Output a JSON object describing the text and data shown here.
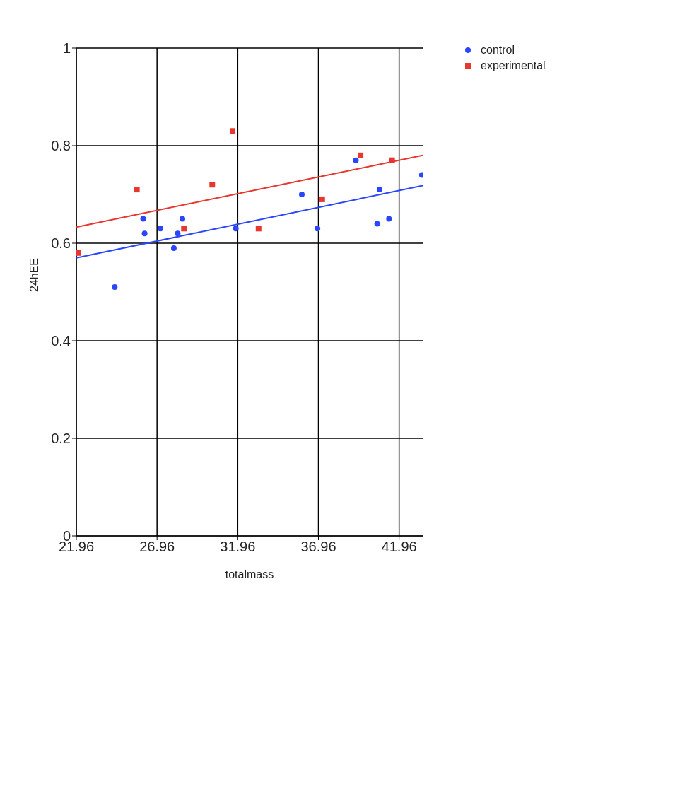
{
  "chart_data": {
    "type": "scatter",
    "xlabel": "totalmass",
    "ylabel": "24hEE",
    "xlim": [
      21.96,
      43.42
    ],
    "xticks": [
      21.96,
      26.96,
      31.96,
      36.96,
      41.96
    ],
    "ylim": [
      0,
      1
    ],
    "yticks": [
      0,
      0.2,
      0.4,
      0.6,
      0.8,
      1
    ],
    "grid": true,
    "legend": "top right",
    "series": [
      {
        "name": "control",
        "color": "#2b45ff",
        "marker": "circle",
        "x": [
          24.34,
          26.1,
          26.19,
          27.17,
          28.0,
          28.24,
          28.53,
          31.84,
          35.93,
          36.9,
          39.28,
          40.74,
          40.6,
          41.33,
          43.37
        ],
        "values": [
          0.51,
          0.65,
          0.62,
          0.63,
          0.59,
          0.62,
          0.65,
          0.63,
          0.7,
          0.63,
          0.77,
          0.71,
          0.64,
          0.65,
          0.74
        ]
      },
      {
        "name": "experimental",
        "color": "#e8372f",
        "marker": "square",
        "x": [
          22.06,
          25.71,
          28.63,
          30.38,
          31.64,
          33.25,
          37.19,
          39.57,
          41.52
        ],
        "values": [
          0.58,
          0.71,
          0.63,
          0.72,
          0.83,
          0.63,
          0.69,
          0.78,
          0.77
        ]
      },
      {
        "type": "line",
        "color": "#2b45ff",
        "marker": "none",
        "x": [
          21.96,
          43.42
        ],
        "values": [
          0.57,
          0.718
        ]
      },
      {
        "type": "line",
        "color": "#e8372f",
        "marker": "none",
        "x": [
          21.96,
          43.42
        ],
        "values": [
          0.633,
          0.78
        ]
      }
    ]
  }
}
